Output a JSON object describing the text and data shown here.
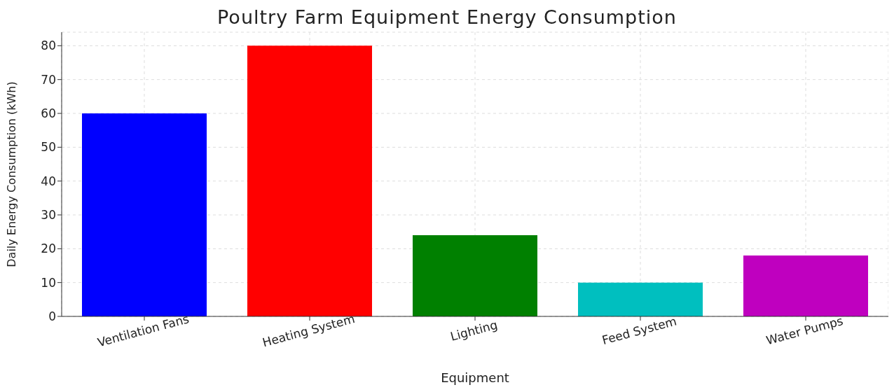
{
  "chart_data": {
    "type": "bar",
    "title": "Poultry Farm Equipment Energy Consumption",
    "xlabel": "Equipment",
    "ylabel": "Daily Energy Consumption (kWh)",
    "categories": [
      "Ventilation Fans",
      "Heating System",
      "Lighting",
      "Feed System",
      "Water Pumps"
    ],
    "values": [
      60,
      80,
      24,
      10,
      18
    ],
    "colors": [
      "#0000ff",
      "#ff0000",
      "#008000",
      "#00bfbf",
      "#bf00bf"
    ],
    "ylim": [
      0,
      84
    ],
    "yticks": [
      0,
      10,
      20,
      30,
      40,
      50,
      60,
      70,
      80
    ],
    "grid": true
  }
}
